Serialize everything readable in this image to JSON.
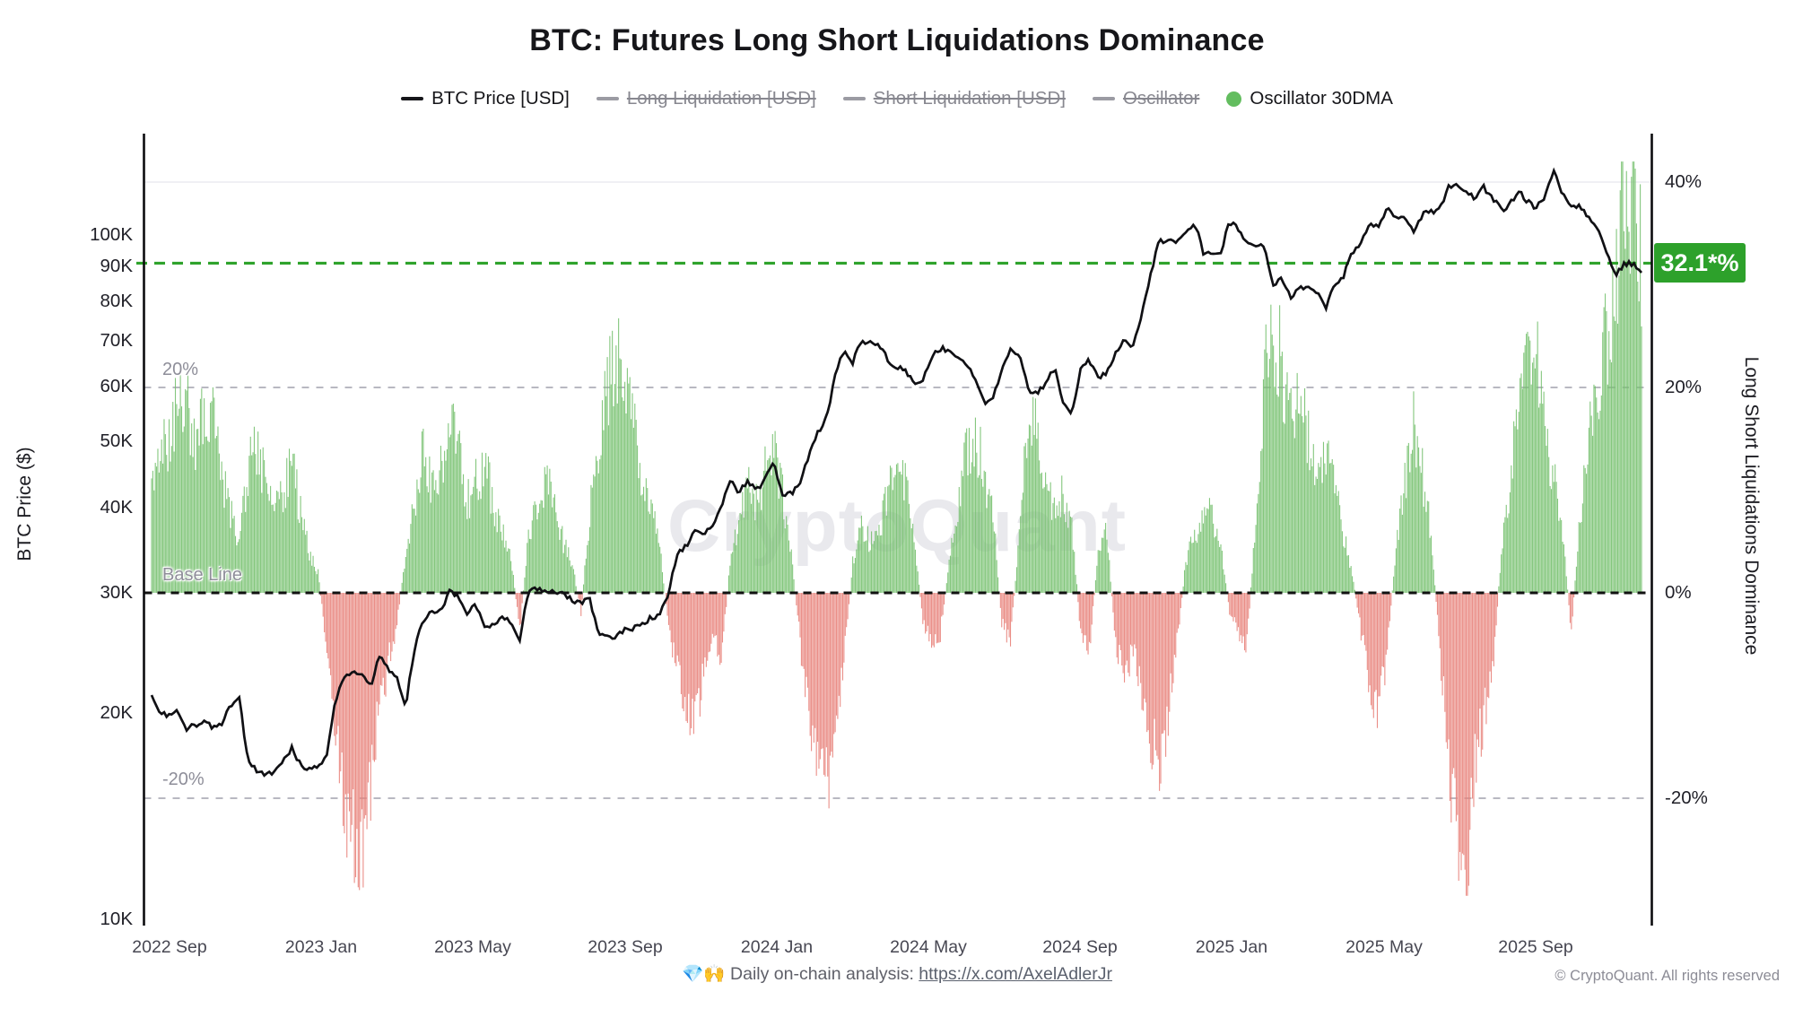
{
  "title": "BTC: Futures Long Short Liquidations Dominance",
  "legend": {
    "items": [
      {
        "label": "BTC Price [USD]",
        "marker": "line",
        "color": "#16161a",
        "struck": false
      },
      {
        "label": "Long Liquidation [USD]",
        "marker": "line",
        "color": "#9b9ba3",
        "struck": true
      },
      {
        "label": "Short Liquidation [USD]",
        "marker": "line",
        "color": "#9b9ba3",
        "struck": true
      },
      {
        "label": "Oscillator",
        "marker": "line",
        "color": "#9b9ba3",
        "struck": true
      },
      {
        "label": "Oscillator 30DMA",
        "marker": "dot",
        "color": "#63bd5f",
        "struck": false
      }
    ]
  },
  "left_axis": {
    "title": "BTC Price ($)",
    "scale": "log",
    "tick_values_k": [
      100,
      90,
      80,
      70,
      60,
      50,
      40,
      30,
      20,
      10
    ],
    "tick_labels": [
      "100K",
      "90K",
      "80K",
      "70K",
      "60K",
      "50K",
      "40K",
      "30K",
      "20K",
      "10K"
    ]
  },
  "right_axis": {
    "title": "Long Short Liquidations Dominance",
    "tick_values_pct": [
      40,
      20,
      0,
      -20
    ],
    "tick_labels": [
      "40%",
      "20%",
      "0%",
      "-20%"
    ]
  },
  "annotations": {
    "current_badge_text": "32.1*%",
    "current_oscillator_pct": 32.1,
    "upper_band_label": "20%",
    "baseline_label": "Base Line",
    "lower_band_label": "-20%"
  },
  "watermark": "CryptoQuant",
  "footer": {
    "note": "💎🙌 Daily on-chain analysis: ",
    "link": "https://x.com/AxelAdlerJr",
    "copyright": "© CryptoQuant. All rights reserved"
  },
  "colors": {
    "price_line": "#101014",
    "bar_positive": "#77c170",
    "bar_negative": "#e8827b",
    "baseline": "#111111",
    "band_gridline": "#b8b8c1",
    "top_gridline": "#ececf0",
    "current_line": "#2fa32c",
    "badge_bg": "#2da12b",
    "legend_dot": "#63bd5f"
  },
  "chart_data": {
    "type": "mixed",
    "subtypes": {
      "price": "line",
      "oscillator": "bar"
    },
    "x_tick_labels": [
      "2022 Sep",
      "2023 Jan",
      "2023 May",
      "2023 Sep",
      "2024 Jan",
      "2024 May",
      "2024 Sep",
      "2025 Jan",
      "2025 May",
      "2025 Sep"
    ],
    "interval": "weekly",
    "start": "2022-08-19",
    "end": "2025-12-12",
    "price_axis": {
      "unit": "USD thousands",
      "scale": "log",
      "range_k": [
        10,
        130
      ]
    },
    "osc_axis": {
      "unit": "percent",
      "range_pct": [
        -30,
        45
      ],
      "baseline_pct": 0,
      "bands_pct": [
        20,
        -20
      ]
    },
    "current_oscillator_pct": 32.1,
    "series": [
      {
        "name": "BTC Price [USD]",
        "type": "line",
        "unit": "K USD",
        "values": [
          21.3,
          20.1,
          19.8,
          20.2,
          19.0,
          19.2,
          19.5,
          19.1,
          19.3,
          20.6,
          21.0,
          16.9,
          16.5,
          16.2,
          16.5,
          17.1,
          17.8,
          16.8,
          16.6,
          16.7,
          17.3,
          20.9,
          22.7,
          23.0,
          22.9,
          21.8,
          24.3,
          23.2,
          22.4,
          20.5,
          24.7,
          27.5,
          28.0,
          28.2,
          30.1,
          29.5,
          27.8,
          28.9,
          26.9,
          26.8,
          27.6,
          27.2,
          25.6,
          30.1,
          30.5,
          30.3,
          30.2,
          29.9,
          29.2,
          29.1,
          29.4,
          26.1,
          26.0,
          25.8,
          26.5,
          26.6,
          27.0,
          27.6,
          27.9,
          30.0,
          34.2,
          35.1,
          37.2,
          36.5,
          37.8,
          40.2,
          43.8,
          42.0,
          43.6,
          42.3,
          44.0,
          46.6,
          41.5,
          42.0,
          43.0,
          47.8,
          51.3,
          54.0,
          62.0,
          68.3,
          65.3,
          69.9,
          69.6,
          69.4,
          65.7,
          64.0,
          63.5,
          60.7,
          61.4,
          66.3,
          68.3,
          67.8,
          66.2,
          64.9,
          61.0,
          56.7,
          58.0,
          63.2,
          67.8,
          66.8,
          59.4,
          58.7,
          60.4,
          63.9,
          57.4,
          54.9,
          63.3,
          65.7,
          62.0,
          62.6,
          67.4,
          69.9,
          68.7,
          76.5,
          88.0,
          97.9,
          98.0,
          97.2,
          101.1,
          104.3,
          94.2,
          94.3,
          94.5,
          104.6,
          102.0,
          97.6,
          96.5,
          96.0,
          84.4,
          86.1,
          80.5,
          83.9,
          84.3,
          82.4,
          78.4,
          85.0,
          87.2,
          94.0,
          96.9,
          104.0,
          103.5,
          109.0,
          105.5,
          105.4,
          101.0,
          107.0,
          108.3,
          108.9,
          118.2,
          117.8,
          115.7,
          113.4,
          117.3,
          113.2,
          108.7,
          111.1,
          115.8,
          112.0,
          109.5,
          114.2,
          123.2,
          115.0,
          110.0,
          110.5,
          106.3,
          101.5,
          95.0,
          87.0,
          90.5,
          91.0,
          88.3
        ]
      },
      {
        "name": "Oscillator 30DMA",
        "type": "bar",
        "unit": "%",
        "values": [
          10,
          13,
          16,
          19,
          20,
          14,
          20,
          17,
          12,
          8,
          5,
          12,
          15,
          11,
          8,
          10,
          13,
          8,
          4,
          2,
          -6,
          -15,
          -22,
          -24,
          -26,
          -19,
          -12,
          -7,
          -3,
          4,
          9,
          14,
          11,
          13,
          17,
          14,
          9,
          11,
          13,
          9,
          6,
          4,
          -4,
          6,
          9,
          11,
          9,
          5,
          3,
          -2,
          8,
          15,
          20,
          24,
          21,
          16,
          12,
          9,
          5,
          -4,
          -8,
          -11,
          -13,
          -8,
          -4,
          -7,
          3,
          7,
          11,
          9,
          12,
          14,
          10,
          4,
          -5,
          -12,
          -17,
          -19,
          -14,
          -7,
          3,
          7,
          5,
          6,
          10,
          13,
          11,
          6,
          -3,
          -5,
          -4,
          3,
          9,
          14,
          16,
          12,
          8,
          -3,
          -5,
          6,
          19,
          16,
          12,
          8,
          10,
          7,
          -4,
          -6,
          4,
          6,
          -5,
          -8,
          -6,
          -10,
          -14,
          -17,
          -12,
          -5,
          3,
          6,
          7,
          8,
          5,
          -2,
          -4,
          -5,
          8,
          22,
          27,
          22,
          18,
          20,
          15,
          12,
          14,
          10,
          6,
          2,
          -4,
          -9,
          -12,
          -6,
          5,
          11,
          17,
          12,
          6,
          -6,
          -16,
          -26,
          -28,
          -18,
          -12,
          -8,
          4,
          10,
          20,
          28,
          24,
          16,
          12,
          6,
          -4,
          8,
          15,
          21,
          26,
          31,
          38,
          41,
          33
        ]
      }
    ]
  }
}
